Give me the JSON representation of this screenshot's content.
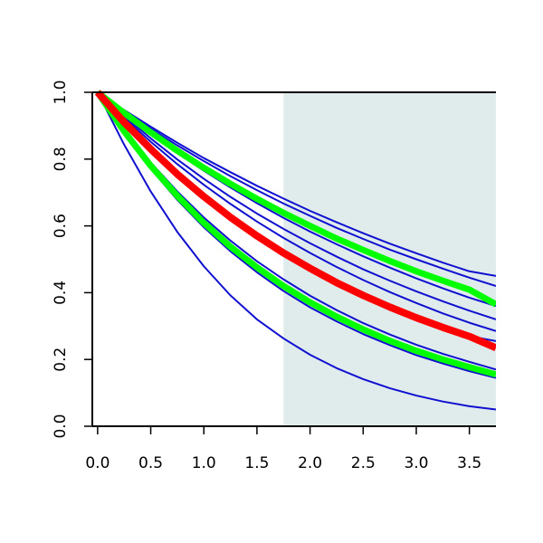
{
  "chart_data": {
    "type": "line",
    "title": "",
    "xlabel": "",
    "ylabel": "",
    "xlim": [
      -0.05,
      3.75
    ],
    "ylim": [
      0.0,
      1.0
    ],
    "x_ticks": [
      0.0,
      0.5,
      1.0,
      1.5,
      2.0,
      2.5,
      3.0,
      3.5
    ],
    "y_ticks": [
      0.0,
      0.2,
      0.4,
      0.6,
      0.8,
      1.0
    ],
    "x_tick_labels": [
      "0.0",
      "0.5",
      "1.0",
      "1.5",
      "2.0",
      "2.5",
      "3.0",
      "3.5"
    ],
    "y_tick_labels": [
      "0.0",
      "0.2",
      "0.4",
      "0.6",
      "0.8",
      "1.0"
    ],
    "grid": false,
    "legend": "none",
    "shaded_region": {
      "x": [
        1.75,
        3.75
      ],
      "color": "#e0ecec"
    },
    "x": [
      0.0,
      0.25,
      0.5,
      0.75,
      1.0,
      1.25,
      1.5,
      1.75,
      2.0,
      2.25,
      2.5,
      2.75,
      3.0,
      3.25,
      3.5,
      3.75
    ],
    "series": [
      {
        "color": "#1010d0",
        "width": 2,
        "values": [
          1.0,
          0.947,
          0.897,
          0.849,
          0.803,
          0.761,
          0.72,
          0.682,
          0.645,
          0.611,
          0.578,
          0.547,
          0.518,
          0.49,
          0.464,
          0.45
        ]
      },
      {
        "color": "#1010d0",
        "width": 2,
        "values": [
          1.0,
          0.944,
          0.891,
          0.841,
          0.794,
          0.749,
          0.707,
          0.667,
          0.63,
          0.594,
          0.561,
          0.529,
          0.5,
          0.472,
          0.445,
          0.42
        ]
      },
      {
        "color": "#1010d0",
        "width": 2,
        "values": [
          1.0,
          0.936,
          0.875,
          0.818,
          0.765,
          0.715,
          0.668,
          0.624,
          0.583,
          0.545,
          0.509,
          0.475,
          0.443,
          0.413,
          0.385,
          0.36
        ]
      },
      {
        "color": "#1010d0",
        "width": 2,
        "values": [
          1.0,
          0.929,
          0.862,
          0.799,
          0.741,
          0.687,
          0.637,
          0.591,
          0.548,
          0.508,
          0.47,
          0.436,
          0.404,
          0.374,
          0.346,
          0.32
        ]
      },
      {
        "color": "#1010d0",
        "width": 2,
        "values": [
          1.0,
          0.924,
          0.852,
          0.785,
          0.723,
          0.666,
          0.613,
          0.564,
          0.519,
          0.477,
          0.438,
          0.402,
          0.369,
          0.338,
          0.31,
          0.285
        ]
      },
      {
        "color": "#1010d0",
        "width": 2,
        "values": [
          1.0,
          0.912,
          0.831,
          0.757,
          0.69,
          0.628,
          0.572,
          0.521,
          0.474,
          0.432,
          0.393,
          0.358,
          0.326,
          0.297,
          0.27,
          0.255
        ]
      },
      {
        "color": "#1010d0",
        "width": 2,
        "values": [
          1.0,
          0.889,
          0.79,
          0.703,
          0.625,
          0.556,
          0.494,
          0.44,
          0.391,
          0.348,
          0.309,
          0.275,
          0.244,
          0.217,
          0.193,
          0.17
        ]
      },
      {
        "color": "#1010d0",
        "width": 2,
        "values": [
          1.0,
          0.878,
          0.771,
          0.678,
          0.596,
          0.524,
          0.461,
          0.405,
          0.356,
          0.314,
          0.276,
          0.243,
          0.213,
          0.188,
          0.165,
          0.145
        ]
      },
      {
        "color": "#1010d0",
        "width": 2,
        "values": [
          1.0,
          0.843,
          0.703,
          0.582,
          0.479,
          0.392,
          0.32,
          0.263,
          0.214,
          0.174,
          0.141,
          0.114,
          0.092,
          0.074,
          0.06,
          0.05
        ]
      },
      {
        "color": "#00ff00",
        "width": 7,
        "values": [
          1.0,
          0.938,
          0.88,
          0.825,
          0.774,
          0.726,
          0.681,
          0.639,
          0.6,
          0.562,
          0.528,
          0.495,
          0.464,
          0.436,
          0.409,
          0.365
        ]
      },
      {
        "color": "#00ff00",
        "width": 7,
        "values": [
          1.0,
          0.883,
          0.78,
          0.69,
          0.609,
          0.538,
          0.476,
          0.42,
          0.371,
          0.328,
          0.29,
          0.256,
          0.226,
          0.2,
          0.177,
          0.155
        ]
      },
      {
        "color": "#ff0000",
        "width": 8,
        "values": [
          1.0,
          0.91,
          0.83,
          0.755,
          0.688,
          0.626,
          0.57,
          0.519,
          0.473,
          0.43,
          0.392,
          0.357,
          0.325,
          0.296,
          0.269,
          0.235
        ]
      }
    ]
  }
}
